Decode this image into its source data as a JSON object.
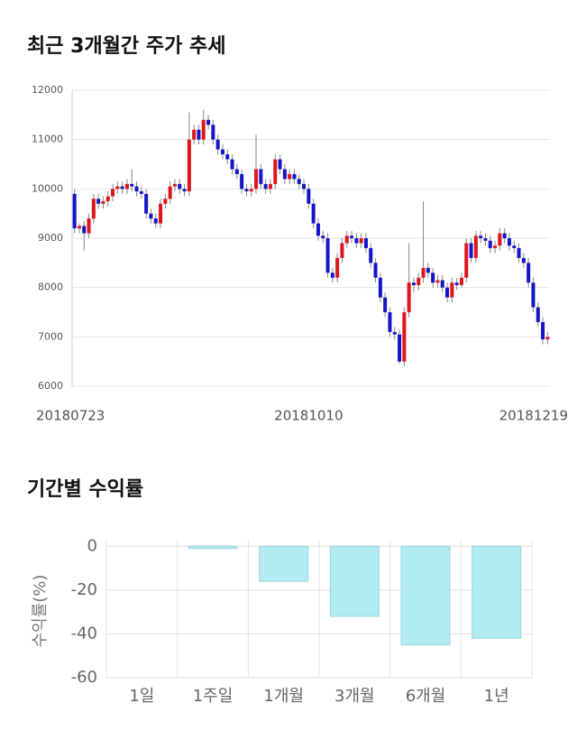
{
  "chart_data": [
    {
      "type": "candlestick",
      "title": "최근 3개월간 주가 추세",
      "categories": [
        "20180723",
        null,
        null,
        null,
        null,
        null,
        null,
        null,
        null,
        null,
        null,
        null,
        null,
        null,
        null,
        null,
        null,
        null,
        null,
        null,
        null,
        null,
        null,
        null,
        null,
        null,
        null,
        null,
        null,
        null,
        null,
        null,
        null,
        null,
        null,
        null,
        null,
        null,
        null,
        null,
        null,
        null,
        null,
        null,
        null,
        null,
        null,
        null,
        null,
        "20181010",
        null,
        null,
        null,
        null,
        null,
        null,
        null,
        null,
        null,
        null,
        null,
        null,
        null,
        null,
        null,
        null,
        null,
        null,
        null,
        null,
        null,
        null,
        null,
        null,
        null,
        null,
        null,
        null,
        null,
        null,
        null,
        null,
        null,
        null,
        null,
        null,
        null,
        null,
        null,
        null,
        null,
        null,
        null,
        null,
        null,
        null,
        null,
        null,
        null,
        "20181219"
      ],
      "open": [
        9900,
        9200,
        9250,
        9100,
        9400,
        9800,
        9700,
        9750,
        9850,
        10000,
        10050,
        10000,
        10100,
        10050,
        9950,
        9900,
        9500,
        9400,
        9300,
        9700,
        9800,
        10050,
        10100,
        10000,
        9950,
        11000,
        11200,
        11000,
        11400,
        11300,
        11000,
        10800,
        10700,
        10600,
        10400,
        10300,
        10000,
        9950,
        10000,
        10400,
        10100,
        10000,
        10100,
        10600,
        10400,
        10200,
        10300,
        10200,
        10100,
        10000,
        9700,
        9300,
        9050,
        9000,
        8300,
        8200,
        8600,
        8900,
        9050,
        9000,
        8900,
        9000,
        8800,
        8500,
        8200,
        7800,
        7500,
        7100,
        7050,
        6500,
        7500,
        8100,
        8050,
        8200,
        8400,
        8300,
        8100,
        8150,
        8000,
        7800,
        8100,
        8050,
        8200,
        8900,
        8600,
        9050,
        9000,
        8950,
        8800,
        8850,
        9100,
        9000,
        8850,
        8800,
        8600,
        8500,
        8100,
        7600,
        7300,
        6950
      ],
      "high": [
        10000,
        9300,
        9350,
        9500,
        9900,
        9900,
        9850,
        9950,
        10100,
        10150,
        10150,
        10200,
        10400,
        10150,
        10050,
        10000,
        9600,
        9500,
        9800,
        9900,
        10150,
        10200,
        10200,
        10100,
        11550,
        11300,
        11300,
        11600,
        11500,
        11400,
        11100,
        10900,
        10800,
        10700,
        10500,
        10400,
        10100,
        10100,
        11100,
        10500,
        10200,
        10200,
        10700,
        10700,
        10500,
        10400,
        10400,
        10300,
        10200,
        10100,
        9800,
        9400,
        9150,
        9100,
        8400,
        8700,
        9000,
        9150,
        9150,
        9100,
        9100,
        9100,
        8900,
        8600,
        8300,
        7900,
        7600,
        7200,
        7150,
        7600,
        8900,
        8200,
        8300,
        9750,
        8500,
        8400,
        8250,
        8250,
        8100,
        8200,
        8200,
        8300,
        9000,
        9000,
        9150,
        9150,
        9100,
        9050,
        8950,
        9200,
        9200,
        9100,
        8950,
        8900,
        8700,
        8600,
        8200,
        7700,
        7400,
        7100
      ],
      "low": [
        9100,
        9100,
        8750,
        9000,
        9300,
        9600,
        9600,
        9650,
        9750,
        9900,
        9900,
        9900,
        9950,
        9850,
        9800,
        9400,
        9300,
        9200,
        9200,
        9600,
        9700,
        9950,
        9900,
        9850,
        9850,
        10900,
        10900,
        10900,
        11200,
        10900,
        10700,
        10600,
        10500,
        10300,
        10200,
        9900,
        9850,
        9850,
        9900,
        10000,
        9900,
        9900,
        10000,
        10300,
        10100,
        10100,
        10100,
        10000,
        9900,
        9600,
        9200,
        8950,
        8900,
        8200,
        8100,
        8100,
        8500,
        8800,
        8900,
        8800,
        8800,
        8700,
        8400,
        8100,
        7700,
        7400,
        7000,
        6950,
        6450,
        6400,
        7400,
        7900,
        7950,
        8100,
        8200,
        8000,
        8000,
        7900,
        7700,
        7700,
        7950,
        8000,
        8100,
        8500,
        8500,
        8900,
        8850,
        8700,
        8700,
        8750,
        8900,
        8750,
        8700,
        8500,
        8400,
        8000,
        7500,
        7200,
        6850,
        6850
      ],
      "close": [
        9200,
        9250,
        9100,
        9400,
        9800,
        9700,
        9750,
        9850,
        10000,
        10050,
        10000,
        10100,
        10050,
        9950,
        9900,
        9500,
        9400,
        9300,
        9700,
        9800,
        10050,
        10100,
        10000,
        9950,
        11000,
        11200,
        11000,
        11400,
        11300,
        11000,
        10800,
        10700,
        10600,
        10400,
        10300,
        10000,
        9950,
        10000,
        10400,
        10100,
        10000,
        10100,
        10600,
        10400,
        10200,
        10300,
        10200,
        10100,
        10000,
        9700,
        9300,
        9050,
        9000,
        8300,
        8200,
        8600,
        8900,
        9050,
        9000,
        8900,
        9000,
        8800,
        8500,
        8200,
        7800,
        7500,
        7100,
        7050,
        6500,
        7500,
        8100,
        8050,
        8200,
        8400,
        8300,
        8100,
        8150,
        8000,
        7800,
        8100,
        8050,
        8200,
        8900,
        8600,
        9050,
        9000,
        8950,
        8800,
        8850,
        9100,
        9000,
        8850,
        8800,
        8600,
        8500,
        8100,
        7600,
        7300,
        6950,
        7000
      ],
      "up_color": "#e0151b",
      "down_color": "#1414c8",
      "ylim": [
        6000,
        12000
      ],
      "yticks": [
        6000,
        7000,
        8000,
        9000,
        10000,
        11000,
        12000
      ],
      "grid": true
    },
    {
      "type": "bar",
      "title": "기간별 수익률",
      "ylabel": "수익률(%)",
      "categories": [
        "1일",
        "1주일",
        "1개월",
        "3개월",
        "6개월",
        "1년"
      ],
      "values": [
        0,
        -1,
        -16,
        -32,
        -45,
        -42
      ],
      "color": "#b3ebf2",
      "ylim": [
        -60,
        3
      ],
      "yticks": [
        0,
        -20,
        -40,
        -60
      ],
      "grid": true
    }
  ]
}
